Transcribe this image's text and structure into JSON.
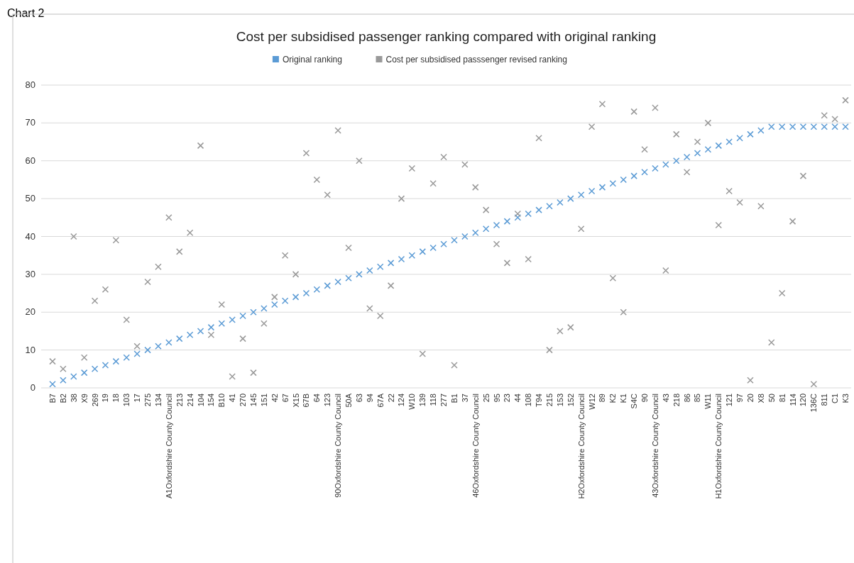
{
  "chart_data": {
    "type": "scatter",
    "title": "Cost per subsidised passenger ranking compared with original ranking",
    "annotations": [
      "Chart 2"
    ],
    "categories": [
      "B7",
      "B2",
      "38",
      "X9",
      "269",
      "19",
      "18",
      "103",
      "17",
      "275",
      "134",
      "A1Oxfordshire County Council",
      "213",
      "214",
      "104",
      "154",
      "B10",
      "41",
      "270",
      "145",
      "151",
      "42",
      "67",
      "X15",
      "67B",
      "64",
      "123",
      "90Oxfordshire County Council",
      "50A",
      "63",
      "94",
      "67A",
      "22",
      "124",
      "W10",
      "139",
      "118",
      "277",
      "B1",
      "37",
      "46Oxfordshire County Council",
      "25",
      "95",
      "23",
      "44",
      "108",
      "T94",
      "215",
      "153",
      "152",
      "H2Oxfordshire County Council",
      "W12",
      "89",
      "K2",
      "K1",
      "S4C",
      "90",
      "43Oxfordshire County Council",
      "43",
      "218",
      "86",
      "85",
      "W11",
      "H1Oxfordshire County Council",
      "121",
      "97",
      "20",
      "X8",
      "50",
      "81",
      "114",
      "120",
      "136C",
      "811",
      "C1",
      "K3"
    ],
    "series": [
      {
        "name": "Original ranking",
        "color": "#5b9bd5",
        "values": [
          1,
          2,
          3,
          4,
          5,
          6,
          7,
          8,
          9,
          10,
          11,
          12,
          13,
          14,
          15,
          16,
          17,
          18,
          19,
          20,
          21,
          22,
          23,
          24,
          25,
          26,
          27,
          28,
          29,
          30,
          31,
          32,
          33,
          34,
          35,
          36,
          37,
          38,
          39,
          40,
          41,
          42,
          43,
          44,
          45,
          46,
          47,
          48,
          49,
          50,
          51,
          52,
          53,
          54,
          55,
          56,
          57,
          58,
          59,
          60,
          61,
          62,
          63,
          64,
          65,
          66,
          67,
          68,
          69,
          69,
          69,
          69,
          69,
          69,
          69,
          69
        ]
      },
      {
        "name": "Cost per subsidised passsenger revised ranking",
        "color": "#999999",
        "values": [
          7,
          5,
          40,
          8,
          23,
          26,
          39,
          18,
          11,
          28,
          32,
          45,
          36,
          41,
          64,
          14,
          22,
          3,
          13,
          4,
          17,
          24,
          35,
          30,
          62,
          55,
          51,
          68,
          37,
          60,
          21,
          19,
          27,
          50,
          58,
          9,
          54,
          61,
          6,
          59,
          53,
          47,
          38,
          33,
          46,
          34,
          66,
          10,
          15,
          16,
          42,
          69,
          75,
          29,
          20,
          73,
          63,
          74,
          31,
          67,
          57,
          65,
          70,
          43,
          52,
          49,
          2,
          48,
          12,
          25,
          44,
          56,
          1,
          72,
          71,
          76
        ]
      }
    ],
    "ylim": [
      0,
      80
    ],
    "yticks": [
      0,
      10,
      20,
      30,
      40,
      50,
      60,
      70,
      80
    ],
    "grid": "y",
    "legend": "top",
    "marker": "cross"
  }
}
